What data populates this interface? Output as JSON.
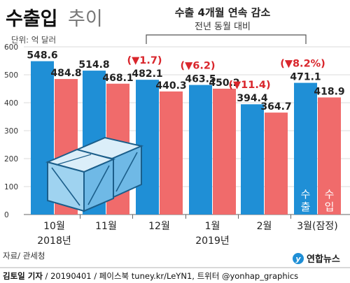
{
  "header": {
    "title": "수출입",
    "title_suffix": "추이"
  },
  "annotation": {
    "title": "수출 4개월 연속 감소",
    "subtitle": "전년 동월 대비"
  },
  "unit": "단위: 억 달러",
  "source": "자료/ 관세청",
  "credit": {
    "author": "김토일 기자",
    "rest": " / 20190401 / 페이스북 tuney.kr/LeYN1, 트위터 @yonhap_graphics"
  },
  "brand": "연합뉴스",
  "colors": {
    "export": "#1f8fd6",
    "import": "#f06b6b",
    "change": "#d9262c",
    "grid": "#cfcfcf"
  },
  "chart_data": {
    "type": "bar",
    "categories": [
      "10월",
      "11월",
      "12월",
      "1월",
      "2월",
      "3월(잠정)"
    ],
    "year_labels": [
      {
        "label": "2018년",
        "under": "10월"
      },
      {
        "label": "2019년",
        "under": "1월"
      }
    ],
    "series": [
      {
        "name": "수출",
        "values": [
          548.6,
          514.8,
          482.1,
          463.5,
          394.4,
          471.1
        ],
        "color": "#1f8fd6"
      },
      {
        "name": "수입",
        "values": [
          484.8,
          468.1,
          440.3,
          450.2,
          364.7,
          418.9
        ],
        "color": "#f06b6b"
      }
    ],
    "value_labels": {
      "export": [
        "548.6",
        "514.8",
        "482.1",
        "463.5",
        "394.4",
        "471.1"
      ],
      "import": [
        "484.8",
        "468.1",
        "440.3",
        "450.2",
        "364.7",
        "418.9"
      ]
    },
    "changes": [
      "",
      "",
      "(▼1.7)",
      "(▼6.2)",
      "(▼11.4)",
      "(▼8.2%)"
    ],
    "ylim": [
      0,
      600
    ],
    "yticks": [
      0,
      100,
      200,
      300,
      400,
      500,
      600
    ],
    "grid": true,
    "legend_placement": "inside-last-bars"
  }
}
